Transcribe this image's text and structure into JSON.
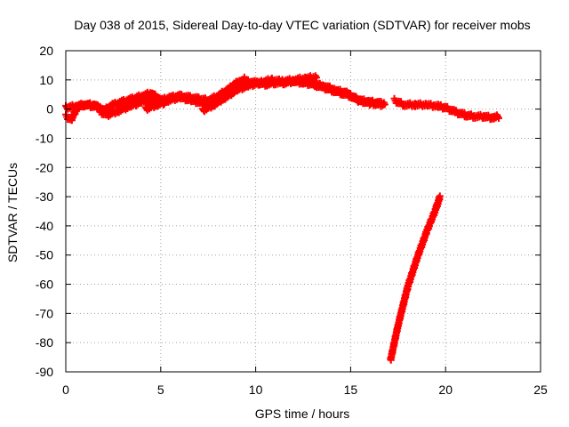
{
  "chart_data": {
    "type": "scatter",
    "title": "Day 038 of 2015, Sidereal Day-to-day VTEC variation (SDTVAR) for receiver mobs",
    "xlabel": "GPS time / hours",
    "ylabel": "SDTVAR / TECUs",
    "xlim": [
      0,
      25
    ],
    "ylim": [
      -90,
      20
    ],
    "xticks": [
      0,
      5,
      10,
      15,
      20,
      25
    ],
    "yticks": [
      20,
      10,
      0,
      -10,
      -20,
      -30,
      -40,
      -50,
      -60,
      -70,
      -80,
      -90
    ],
    "grid": true,
    "marker": "plus",
    "color": "#ff0000",
    "series": [
      {
        "name": "SDTVAR",
        "segments": [
          {
            "x": [
              0.0,
              0.3,
              0.6,
              1.0,
              1.4,
              1.8
            ],
            "y": [
              -2.5,
              -3.5,
              0.5,
              1.5,
              1.0,
              0.5
            ]
          },
          {
            "x": [
              0.0,
              0.5,
              1.0,
              1.5,
              2.0,
              2.5,
              3.0,
              3.5,
              4.0,
              4.5,
              5.0,
              5.5,
              6.0,
              6.5,
              7.0,
              7.5,
              8.0,
              8.5,
              9.0,
              9.5,
              10.0,
              10.5,
              11.0,
              11.5,
              12.0,
              12.5,
              13.0,
              13.5,
              14.0,
              14.5,
              15.0,
              15.5,
              16.0,
              16.5,
              16.8
            ],
            "y": [
              0.5,
              1.0,
              1.5,
              1.5,
              -0.5,
              1.5,
              2.5,
              3.5,
              4.5,
              5.5,
              3.0,
              4.0,
              4.5,
              4.0,
              3.5,
              3.0,
              4.5,
              6.5,
              9.0,
              9.5,
              9.0,
              8.5,
              9.0,
              9.0,
              9.5,
              9.0,
              8.5,
              7.5,
              6.5,
              5.5,
              4.5,
              3.0,
              2.5,
              2.0,
              2.0
            ]
          },
          {
            "x": [
              1.8,
              2.2,
              2.8,
              3.4,
              4.0,
              4.6,
              5.2
            ],
            "y": [
              -1.0,
              -2.0,
              -0.5,
              1.0,
              2.5,
              3.0,
              2.0
            ]
          },
          {
            "x": [
              4.2,
              4.8,
              5.4,
              6.0,
              6.6,
              7.2,
              7.8,
              8.4,
              9.0,
              9.4
            ],
            "y": [
              0.0,
              1.5,
              3.0,
              4.0,
              3.0,
              2.0,
              3.0,
              5.0,
              7.5,
              10.5
            ]
          },
          {
            "x": [
              7.2,
              7.8,
              8.4,
              9.0,
              9.6,
              10.2,
              10.8,
              11.4,
              12.0,
              12.6,
              13.2
            ],
            "y": [
              -0.5,
              1.5,
              4.0,
              6.5,
              8.0,
              9.0,
              10.0,
              9.5,
              10.0,
              10.5,
              11.0
            ]
          },
          {
            "x": [
              13.0,
              13.6,
              14.2,
              14.8,
              15.4,
              16.0,
              16.6
            ],
            "y": [
              8.5,
              8.0,
              6.5,
              5.5,
              3.0,
              2.0,
              1.5
            ]
          },
          {
            "x": [
              17.3,
              17.8,
              18.4,
              19.0,
              19.6,
              20.0,
              20.5,
              21.0,
              21.5,
              22.0,
              22.5,
              22.8
            ],
            "y": [
              3.0,
              1.5,
              1.5,
              1.5,
              1.0,
              0.5,
              -1.0,
              -2.0,
              -2.5,
              -2.5,
              -3.0,
              -2.5
            ]
          },
          {
            "x": [
              17.1,
              17.5,
              18.0,
              18.5,
              19.0,
              19.5,
              19.7
            ],
            "y": [
              -86.0,
              -74.0,
              -61.0,
              -51.0,
              -42.0,
              -34.0,
              -30.0
            ]
          }
        ]
      }
    ]
  }
}
